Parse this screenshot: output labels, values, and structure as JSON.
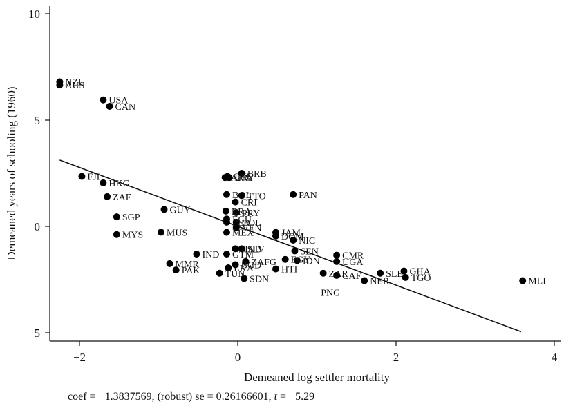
{
  "chart_data": {
    "type": "scatter",
    "xlabel": "Demeaned log settler mortality",
    "ylabel": "Demeaned years of schooling (1960)",
    "xlim": [
      -2.3,
      4.1
    ],
    "ylim": [
      -5.2,
      10.2
    ],
    "xticks": [
      -2,
      0,
      2,
      4
    ],
    "yticks": [
      10,
      5,
      0,
      -5
    ],
    "xtick_labels": [
      "−2",
      "0",
      "2",
      "4"
    ],
    "ytick_labels": [
      "10",
      "5",
      "0",
      "−5"
    ],
    "fit_line": {
      "x1": -2.25,
      "y1": 3.12,
      "x2": 3.58,
      "y2": -4.95
    },
    "points": [
      {
        "label": "NZL",
        "x": -2.25,
        "y": 6.8
      },
      {
        "label": "AUS",
        "x": -2.25,
        "y": 6.65
      },
      {
        "label": "USA",
        "x": -1.7,
        "y": 5.95
      },
      {
        "label": "CAN",
        "x": -1.62,
        "y": 5.65
      },
      {
        "label": "FJI",
        "x": -1.97,
        "y": 2.35
      },
      {
        "label": "HKG",
        "x": -1.7,
        "y": 2.05
      },
      {
        "label": "ZAF",
        "x": -1.65,
        "y": 1.4
      },
      {
        "label": "SGP",
        "x": -1.53,
        "y": 0.45
      },
      {
        "label": "MYS",
        "x": -1.53,
        "y": -0.38
      },
      {
        "label": "GUY",
        "x": -0.93,
        "y": 0.8
      },
      {
        "label": "MUS",
        "x": -0.97,
        "y": -0.27
      },
      {
        "label": "IND",
        "x": -0.52,
        "y": -1.3
      },
      {
        "label": "MMR",
        "x": -0.86,
        "y": -1.75
      },
      {
        "label": "PAK",
        "x": -0.78,
        "y": -2.05
      },
      {
        "label": "ARG",
        "x": -0.16,
        "y": 2.3
      },
      {
        "label": "CHL",
        "x": -0.13,
        "y": 2.35
      },
      {
        "label": "URY",
        "x": -0.11,
        "y": 2.3
      },
      {
        "label": "BRB",
        "x": 0.05,
        "y": 2.5
      },
      {
        "label": "BOL",
        "x": -0.14,
        "y": 1.5
      },
      {
        "label": "TTO",
        "x": 0.05,
        "y": 1.45
      },
      {
        "label": "CRI",
        "x": -0.03,
        "y": 1.15
      },
      {
        "label": "PAN",
        "x": 0.7,
        "y": 1.5
      },
      {
        "label": "BRA",
        "x": -0.15,
        "y": 0.72
      },
      {
        "label": "PRY",
        "x": -0.02,
        "y": 0.65
      },
      {
        "label": "ECU",
        "x": -0.14,
        "y": 0.35
      },
      {
        "label": "PER",
        "x": -0.14,
        "y": 0.2
      },
      {
        "label": "COL",
        "x": -0.02,
        "y": 0.2
      },
      {
        "label": "VEN",
        "x": -0.02,
        "y": -0.05
      },
      {
        "label": "MEX",
        "x": -0.14,
        "y": -0.28
      },
      {
        "label": "JAM",
        "x": 0.48,
        "y": -0.28
      },
      {
        "label": "DOM",
        "x": 0.48,
        "y": -0.45
      },
      {
        "label": "NIC",
        "x": 0.7,
        "y": -0.65
      },
      {
        "label": "HND",
        "x": -0.03,
        "y": -1.05
      },
      {
        "label": "SLV",
        "x": 0.05,
        "y": -1.05
      },
      {
        "label": "GTM",
        "x": -0.14,
        "y": -1.3
      },
      {
        "label": "SEN",
        "x": 0.72,
        "y": -1.15
      },
      {
        "label": "EGY",
        "x": 0.6,
        "y": -1.55
      },
      {
        "label": "IDN",
        "x": 0.75,
        "y": -1.6
      },
      {
        "label": "ZAFG",
        "x": 0.1,
        "y": -1.65
      },
      {
        "label": "CMR",
        "x": 1.25,
        "y": -1.35
      },
      {
        "label": "UGA",
        "x": 1.25,
        "y": -1.65
      },
      {
        "label": "BGD",
        "x": -0.03,
        "y": -1.8
      },
      {
        "label": "LKA",
        "x": -0.12,
        "y": -1.95
      },
      {
        "label": "HTI",
        "x": 0.48,
        "y": -2.0
      },
      {
        "label": "TUN",
        "x": -0.23,
        "y": -2.2
      },
      {
        "label": "SDN",
        "x": 0.08,
        "y": -2.45
      },
      {
        "label": "ZAR",
        "x": 1.08,
        "y": -2.2
      },
      {
        "label": "CAF",
        "x": 1.25,
        "y": -2.3
      },
      {
        "label": "NER",
        "x": 1.6,
        "y": -2.55
      },
      {
        "label": "SLE",
        "x": 1.8,
        "y": -2.2
      },
      {
        "label": "GHA",
        "x": 2.1,
        "y": -2.1
      },
      {
        "label": "TGO",
        "x": 2.12,
        "y": -2.4
      },
      {
        "label": "MLI",
        "x": 3.6,
        "y": -2.55
      }
    ],
    "free_labels": [
      {
        "label": "PNG",
        "x": 1.05,
        "y": -3.1
      }
    ],
    "point_color": "#000000"
  },
  "footer": {
    "caption_prefix": "coef = −1.3837569, (robust) se = 0.26166601, ",
    "caption_t": "t",
    "caption_suffix": " = −5.29"
  }
}
